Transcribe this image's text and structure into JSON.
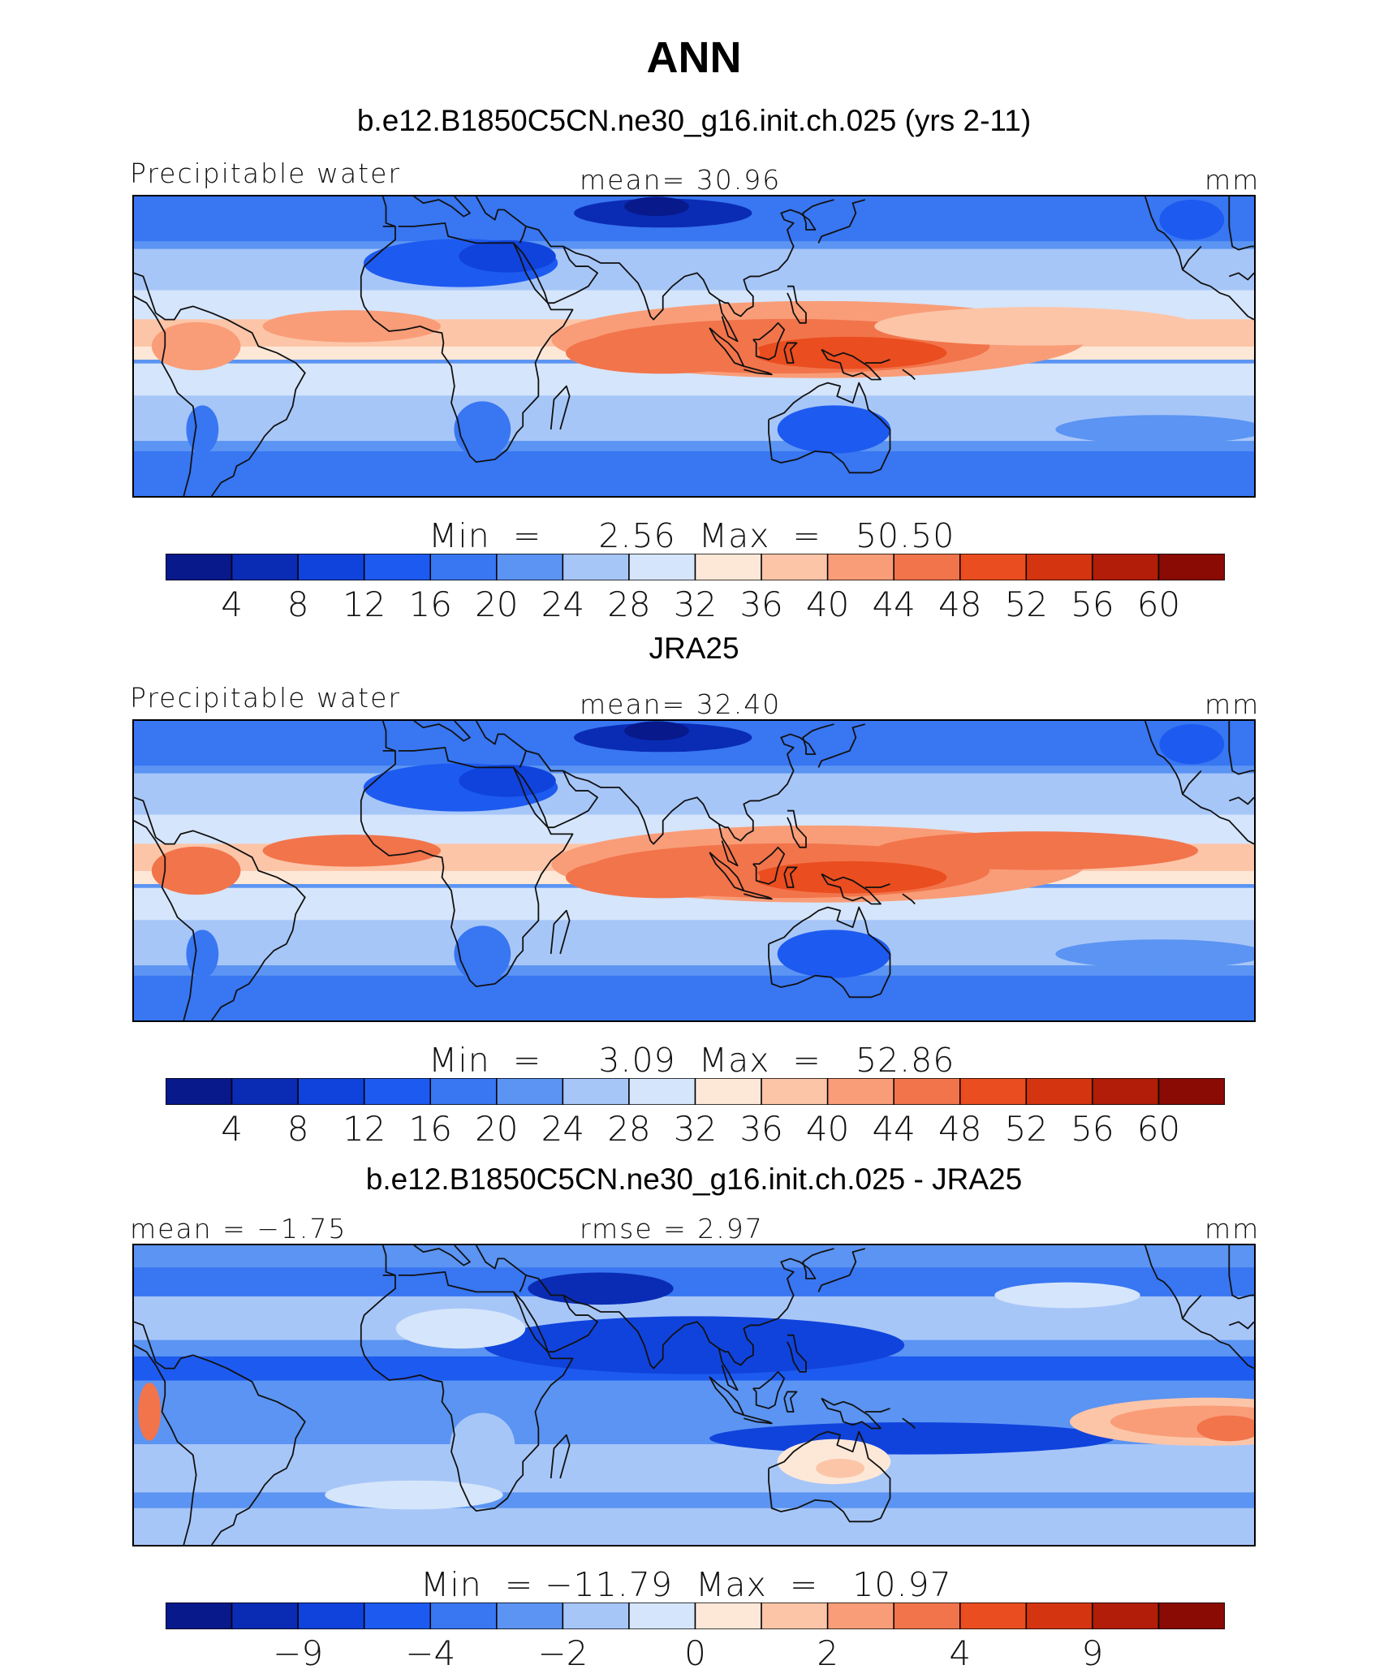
{
  "figure_title": "ANN",
  "color_ramp": [
    "#08198c",
    "#0a2cb4",
    "#1043dc",
    "#1d5af0",
    "#3876f2",
    "#5b94f2",
    "#a7c6f8",
    "#d5e5fb",
    "#fde8d8",
    "#fcc5a8",
    "#f99d78",
    "#f2744b",
    "#ea4d1f",
    "#d43410",
    "#b11d08",
    "#8a0a04"
  ],
  "panels": [
    {
      "title": "b.e12.B1850C5CN.ne30_g16.init.ch.025 (yrs 2-11)",
      "left_label": "Precipitable water",
      "center_label": "mean=   30.96",
      "units": "mm",
      "min_max": "Min  =     2.56  Max  =   50.50",
      "ticks": [
        "4",
        "8",
        "12",
        "16",
        "20",
        "24",
        "28",
        "32",
        "36",
        "40",
        "44",
        "48",
        "52",
        "56",
        "60"
      ],
      "field": "model"
    },
    {
      "title": "JRA25",
      "left_label": "Precipitable water",
      "center_label": "mean=   32.40",
      "units": "mm",
      "min_max": "Min  =     3.09  Max  =   52.86",
      "ticks": [
        "4",
        "8",
        "12",
        "16",
        "20",
        "24",
        "28",
        "32",
        "36",
        "40",
        "44",
        "48",
        "52",
        "56",
        "60"
      ],
      "field": "obs"
    },
    {
      "title": "b.e12.B1850C5CN.ne30_g16.init.ch.025 - JRA25",
      "left_label": "mean =  −1.75",
      "center_label": "rmse =    2.97",
      "units": "mm",
      "min_max": "Min  = −11.79  Max  =   10.97",
      "ticks": [
        "−9",
        "−4",
        "−2",
        "0",
        "2",
        "4",
        "9"
      ],
      "field": "diff"
    }
  ]
}
